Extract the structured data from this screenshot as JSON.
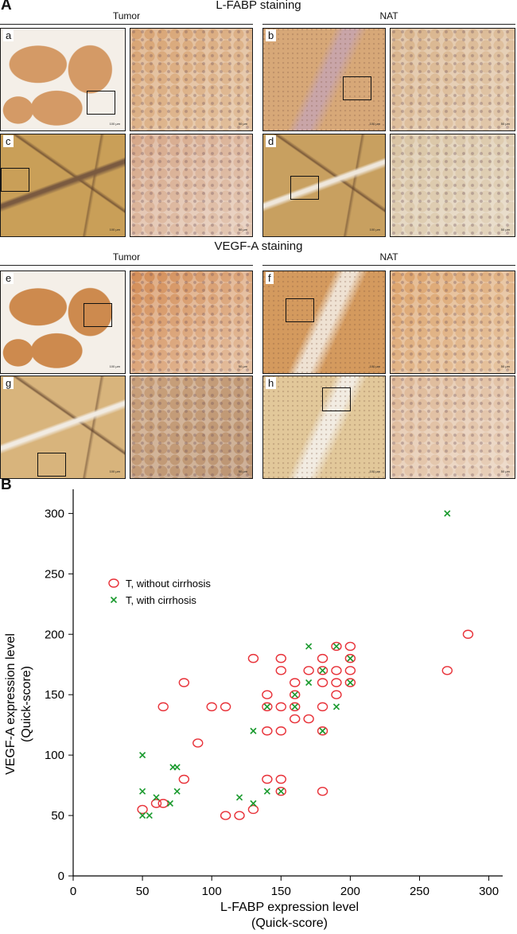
{
  "panel_a": {
    "letter": "A",
    "sections": [
      {
        "title": "L-FABP staining",
        "groups": [
          "Tumor",
          "NAT"
        ],
        "images": [
          {
            "label": "a",
            "roi": true,
            "base": "#d49a66",
            "alt": "#f4efe8",
            "pattern": "tumor-lobes",
            "scale": "100 µm"
          },
          {
            "label": "",
            "roi": false,
            "base": "#d8a372",
            "alt": "#ead9c3",
            "pattern": "cells",
            "scale": "50 µm"
          },
          {
            "label": "b",
            "roi": true,
            "base": "#d7a878",
            "alt": "#c9a5a8",
            "pattern": "liver",
            "scale": "100 µm"
          },
          {
            "label": "",
            "roi": false,
            "base": "#d9b38a",
            "alt": "#e9dccb",
            "pattern": "cells",
            "scale": "50 µm"
          },
          {
            "label": "c",
            "roi": true,
            "base": "#c99f58",
            "alt": "#7a5a40",
            "pattern": "septa",
            "scale": "100 µm"
          },
          {
            "label": "",
            "roi": false,
            "base": "#d6a788",
            "alt": "#efe4da",
            "pattern": "cells",
            "scale": "50 µm"
          },
          {
            "label": "d",
            "roi": true,
            "base": "#c8a060",
            "alt": "#efe7db",
            "pattern": "septa",
            "scale": "100 µm"
          },
          {
            "label": "",
            "roi": false,
            "base": "#d9c4a3",
            "alt": "#ebe2d4",
            "pattern": "cells",
            "scale": "50 µm"
          }
        ]
      },
      {
        "title": "VEGF-A staining",
        "groups": [
          "Tumor",
          "NAT"
        ],
        "images": [
          {
            "label": "e",
            "roi": true,
            "base": "#cd8a4e",
            "alt": "#f4efe8",
            "pattern": "tumor-lobes",
            "scale": "100 µm"
          },
          {
            "label": "",
            "roi": false,
            "base": "#d38c55",
            "alt": "#f3ece2",
            "pattern": "cells",
            "scale": "50 µm"
          },
          {
            "label": "f",
            "roi": true,
            "base": "#d49a5e",
            "alt": "#efe2d3",
            "pattern": "liver",
            "scale": "100 µm"
          },
          {
            "label": "",
            "roi": false,
            "base": "#dca26a",
            "alt": "#efe3d2",
            "pattern": "cells",
            "scale": "50 µm"
          },
          {
            "label": "g",
            "roi": true,
            "base": "#d8b47c",
            "alt": "#f1ebe2",
            "pattern": "septa",
            "scale": "100 µm"
          },
          {
            "label": "",
            "roi": false,
            "base": "#c9a07a",
            "alt": "#b18c6f",
            "pattern": "cells",
            "scale": "50 µm"
          },
          {
            "label": "h",
            "roi": true,
            "base": "#e2c89a",
            "alt": "#f2ece2",
            "pattern": "liver",
            "scale": "100 µm"
          },
          {
            "label": "",
            "roi": false,
            "base": "#deb896",
            "alt": "#f1e6dc",
            "pattern": "cells",
            "scale": "50 µm"
          }
        ]
      }
    ]
  },
  "panel_b": {
    "letter": "B"
  },
  "chart_data": {
    "type": "scatter",
    "xlabel_line1": "L-FABP expression level",
    "xlabel_line2": "(Quick-score)",
    "ylabel_line1": "VEGF-A expression level",
    "ylabel_line2": "(Quick-score)",
    "xlim": [
      0,
      310
    ],
    "ylim": [
      0,
      320
    ],
    "xticks": [
      0,
      50,
      100,
      150,
      200,
      250,
      300
    ],
    "yticks": [
      0,
      50,
      100,
      150,
      200,
      250,
      300
    ],
    "legend_position": "upper-left",
    "series": [
      {
        "name": "T, without cirrhosis",
        "marker": "circle",
        "color": "#e8333a",
        "points": [
          [
            50,
            55
          ],
          [
            60,
            60
          ],
          [
            65,
            60
          ],
          [
            65,
            140
          ],
          [
            80,
            80
          ],
          [
            80,
            160
          ],
          [
            90,
            110
          ],
          [
            100,
            140
          ],
          [
            110,
            140
          ],
          [
            110,
            50
          ],
          [
            120,
            50
          ],
          [
            130,
            55
          ],
          [
            130,
            180
          ],
          [
            140,
            80
          ],
          [
            140,
            120
          ],
          [
            140,
            140
          ],
          [
            140,
            150
          ],
          [
            150,
            70
          ],
          [
            150,
            80
          ],
          [
            150,
            120
          ],
          [
            150,
            140
          ],
          [
            150,
            170
          ],
          [
            150,
            180
          ],
          [
            160,
            130
          ],
          [
            160,
            140
          ],
          [
            160,
            150
          ],
          [
            160,
            160
          ],
          [
            170,
            130
          ],
          [
            170,
            170
          ],
          [
            180,
            70
          ],
          [
            180,
            120
          ],
          [
            180,
            140
          ],
          [
            180,
            160
          ],
          [
            180,
            170
          ],
          [
            180,
            180
          ],
          [
            190,
            150
          ],
          [
            190,
            160
          ],
          [
            190,
            170
          ],
          [
            190,
            190
          ],
          [
            200,
            160
          ],
          [
            200,
            170
          ],
          [
            200,
            180
          ],
          [
            200,
            190
          ],
          [
            270,
            170
          ],
          [
            285,
            200
          ]
        ]
      },
      {
        "name": "T, with cirrhosis",
        "marker": "x",
        "color": "#1a9a2e",
        "points": [
          [
            50,
            50
          ],
          [
            50,
            70
          ],
          [
            50,
            100
          ],
          [
            55,
            50
          ],
          [
            60,
            65
          ],
          [
            70,
            60
          ],
          [
            72,
            90
          ],
          [
            75,
            90
          ],
          [
            75,
            70
          ],
          [
            120,
            65
          ],
          [
            130,
            60
          ],
          [
            130,
            120
          ],
          [
            140,
            70
          ],
          [
            140,
            140
          ],
          [
            150,
            70
          ],
          [
            160,
            140
          ],
          [
            160,
            150
          ],
          [
            170,
            160
          ],
          [
            170,
            190
          ],
          [
            180,
            120
          ],
          [
            180,
            170
          ],
          [
            190,
            140
          ],
          [
            190,
            190
          ],
          [
            200,
            160
          ],
          [
            200,
            180
          ],
          [
            270,
            300
          ]
        ]
      }
    ]
  }
}
